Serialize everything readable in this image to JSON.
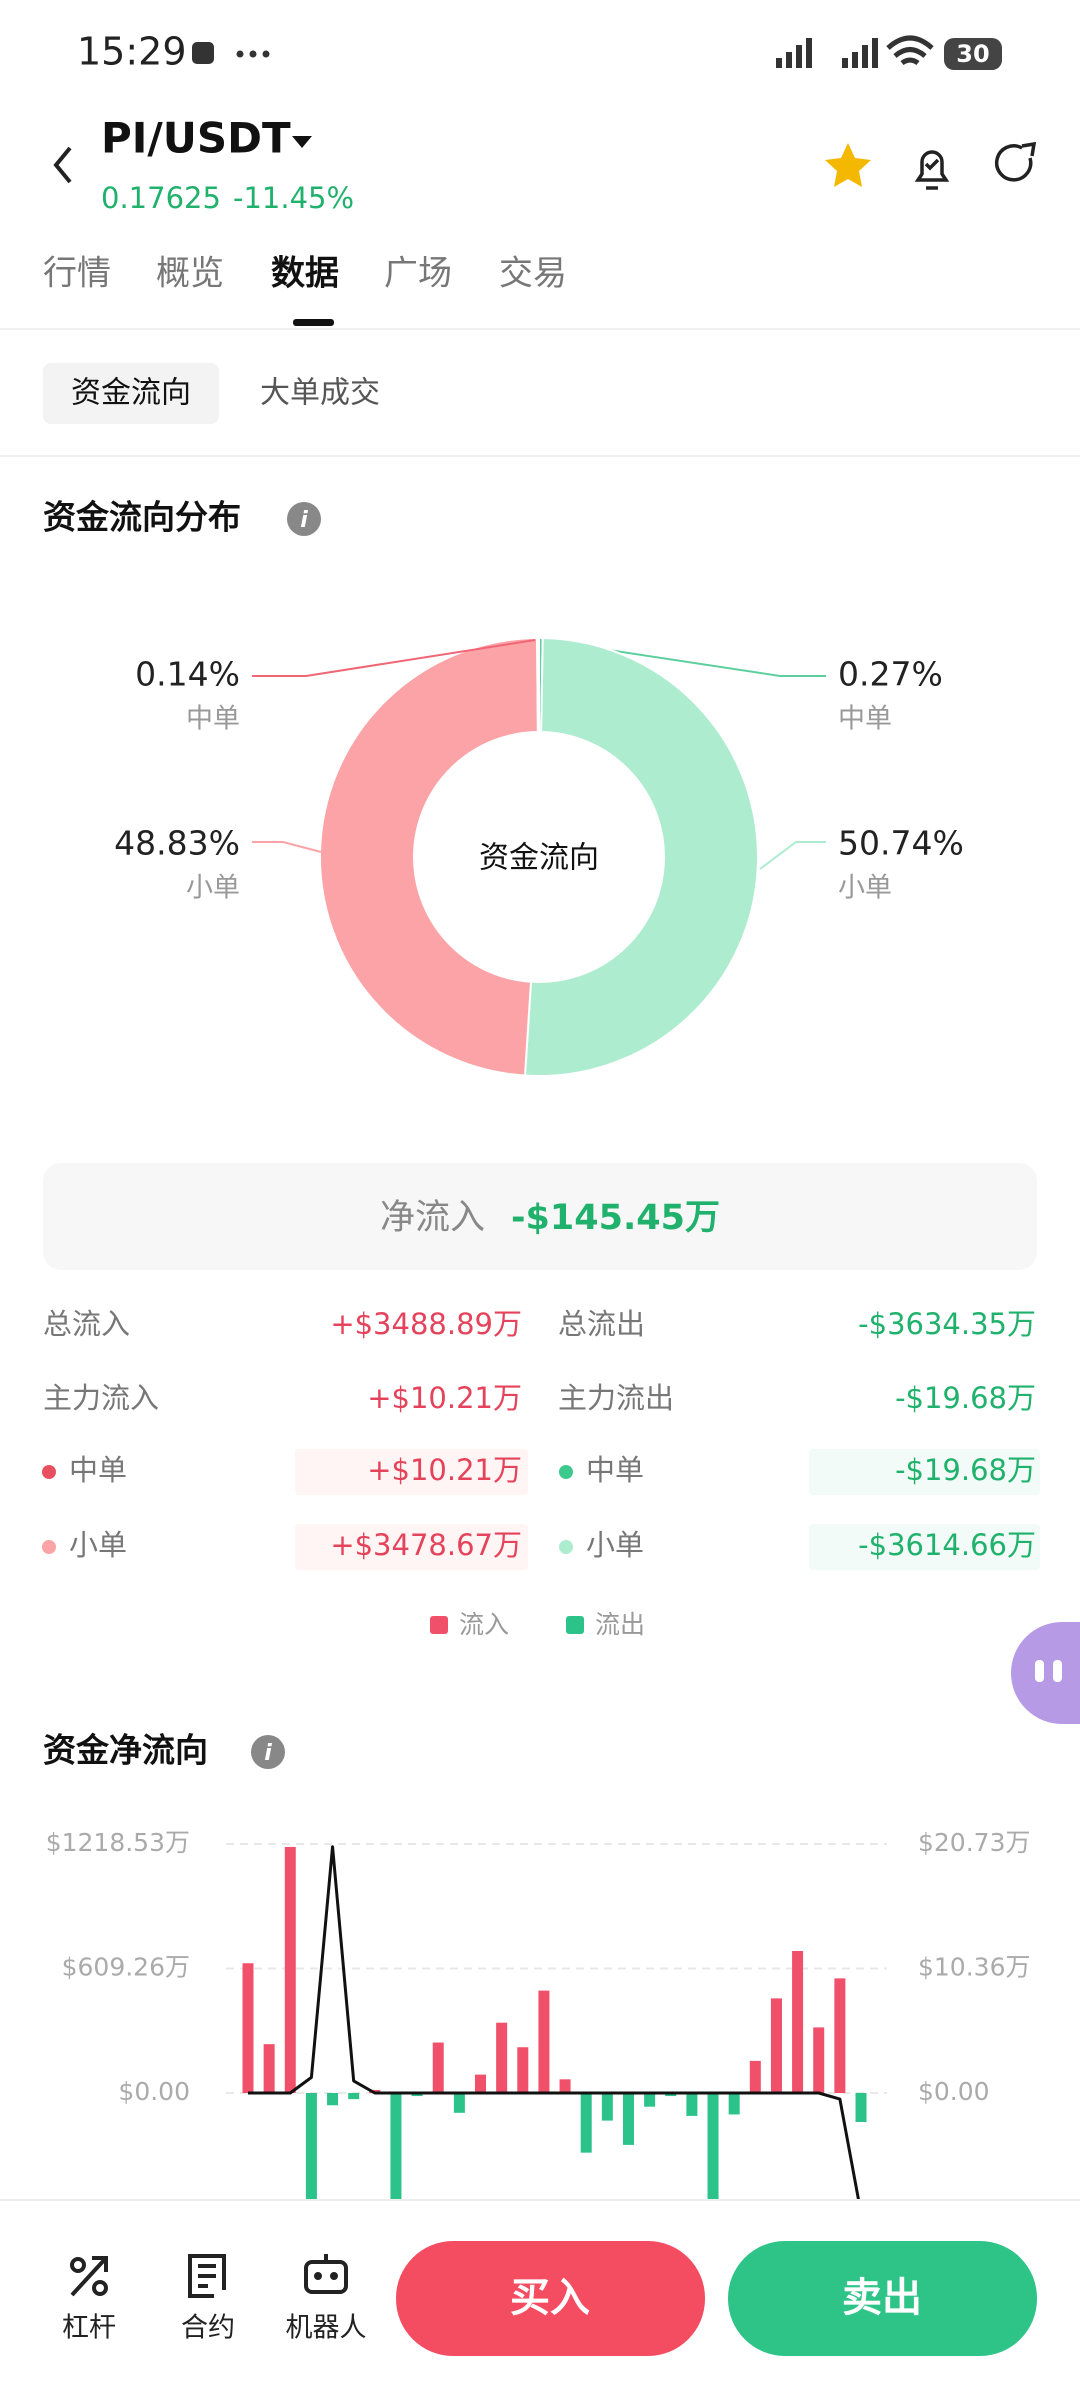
{
  "status_bar": {
    "time": "15:29",
    "battery": "30"
  },
  "header": {
    "pair": "PI/USDT",
    "price": "0.17625",
    "change": "-11.45%"
  },
  "tabs": {
    "items": [
      "行情",
      "概览",
      "数据",
      "广场",
      "交易"
    ],
    "active": 2
  },
  "sub_tabs": {
    "items": [
      "资金流向",
      "大单成交"
    ],
    "active": 0
  },
  "distribution": {
    "title": "资金流向分布",
    "center_label": "资金流向",
    "slices": [
      {
        "label": "中单",
        "value": 0.27,
        "value_label": "0.27%",
        "color": "#5ccf9c"
      },
      {
        "label": "小单",
        "value": 50.74,
        "value_label": "50.74%",
        "color": "#aeecd0"
      },
      {
        "label": "小单",
        "value": 48.83,
        "value_label": "48.83%",
        "color": "#fba3a6"
      },
      {
        "label": "中单",
        "value": 0.14,
        "value_label": "0.14%",
        "color": "#ef6675"
      }
    ]
  },
  "net_inflow": {
    "label": "净流入",
    "value": "-$145.45万"
  },
  "flow_table": {
    "rows": [
      {
        "left_label": "总流入",
        "left_value": "+$3488.89万",
        "right_label": "总流出",
        "right_value": "-$3634.35万"
      },
      {
        "left_label": "主力流入",
        "left_value": "+$10.21万",
        "right_label": "主力流出",
        "right_value": "-$19.68万"
      },
      {
        "left_label": "中单",
        "left_value": "+$10.21万",
        "right_label": "中单",
        "right_value": "-$19.68万",
        "left_dot": "#e8505f",
        "right_dot": "#3ec98c"
      },
      {
        "left_label": "小单",
        "left_value": "+$3478.67万",
        "right_label": "小单",
        "right_value": "-$3614.66万",
        "left_dot": "#fba3a6",
        "right_dot": "#aeecd0"
      }
    ]
  },
  "legend": [
    {
      "name": "流入",
      "color": "#f0506a"
    },
    {
      "name": "流出",
      "color": "#2bc389"
    }
  ],
  "chart_data": {
    "type": "bar",
    "title": "资金净流向",
    "categories": [
      null,
      null,
      null,
      null,
      null,
      null,
      null,
      null,
      null,
      null,
      null,
      null,
      null,
      null,
      null,
      null,
      null,
      null,
      null,
      null,
      null,
      null,
      null,
      null,
      null,
      null,
      null,
      null,
      null,
      null
    ],
    "series": [
      {
        "type": "bar",
        "positive_color": "#f0506a",
        "negative_color": "#2bc389",
        "values": [
          635,
          239,
          1204,
          -700,
          -60,
          -30,
          15,
          -700,
          -15,
          247,
          -97,
          90,
          344,
          224,
          501,
          67,
          -292,
          -135,
          -254,
          -67,
          -15,
          -112,
          -700,
          -105,
          157,
          463,
          695,
          321,
          561,
          -142
        ]
      },
      {
        "type": "line",
        "axis": "y2",
        "color": "#111111",
        "values": [
          0,
          0,
          0,
          1.3,
          20.5,
          1,
          0,
          0,
          0,
          0,
          0,
          0,
          0,
          0,
          0,
          0,
          0,
          0,
          0,
          0,
          0,
          0,
          0,
          0,
          0,
          0,
          0,
          0,
          -0.5,
          -10
        ]
      }
    ],
    "ylim": [
      -1218.53,
      1218.53
    ],
    "yticks": [
      {
        "value": 0,
        "label": "$0.00"
      },
      {
        "value": 609.26,
        "label": "$609.26万"
      },
      {
        "value": 1218.53,
        "label": "$1218.53万"
      }
    ],
    "y2lim": [
      -20.73,
      20.73
    ],
    "y2ticks": [
      {
        "value": 0,
        "label": "$0.00"
      },
      {
        "value": 10.36,
        "label": "$10.36万"
      },
      {
        "value": 20.73,
        "label": "$20.73万"
      }
    ],
    "grid": true
  },
  "bottom_nav": {
    "items": [
      "杠杆",
      "合约",
      "机器人"
    ],
    "buy": "买入",
    "sell": "卖出"
  }
}
